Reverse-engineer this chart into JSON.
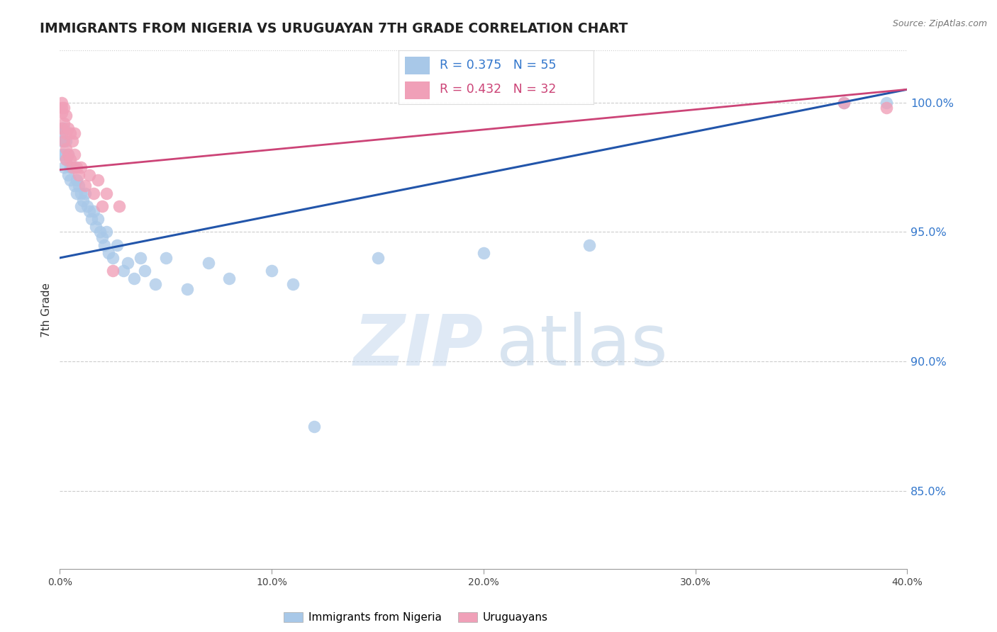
{
  "title": "IMMIGRANTS FROM NIGERIA VS URUGUAYAN 7TH GRADE CORRELATION CHART",
  "source": "Source: ZipAtlas.com",
  "ylabel": "7th Grade",
  "ytick_labels": [
    "100.0%",
    "95.0%",
    "90.0%",
    "85.0%"
  ],
  "ytick_values": [
    1.0,
    0.95,
    0.9,
    0.85
  ],
  "xlim": [
    0.0,
    0.4
  ],
  "ylim": [
    0.82,
    1.02
  ],
  "xtick_positions": [
    0.0,
    0.1,
    0.2,
    0.3,
    0.4
  ],
  "xtick_labels": [
    "0.0%",
    "10.0%",
    "20.0%",
    "30.0%",
    "40.0%"
  ],
  "legend1_label": "Immigrants from Nigeria",
  "legend2_label": "Uruguayans",
  "blue_color": "#a8c8e8",
  "pink_color": "#f0a0b8",
  "blue_line_color": "#2255aa",
  "pink_line_color": "#cc4477",
  "r_blue": 0.375,
  "n_blue": 55,
  "r_pink": 0.432,
  "n_pink": 32,
  "blue_x": [
    0.001,
    0.001,
    0.001,
    0.001,
    0.002,
    0.002,
    0.002,
    0.002,
    0.003,
    0.003,
    0.004,
    0.004,
    0.005,
    0.005,
    0.006,
    0.007,
    0.007,
    0.008,
    0.008,
    0.009,
    0.01,
    0.01,
    0.011,
    0.012,
    0.013,
    0.014,
    0.015,
    0.016,
    0.017,
    0.018,
    0.019,
    0.02,
    0.021,
    0.022,
    0.023,
    0.025,
    0.027,
    0.03,
    0.032,
    0.035,
    0.038,
    0.04,
    0.045,
    0.05,
    0.06,
    0.07,
    0.08,
    0.1,
    0.11,
    0.12,
    0.15,
    0.2,
    0.25,
    0.37,
    0.39
  ],
  "blue_y": [
    0.99,
    0.988,
    0.985,
    0.98,
    0.99,
    0.985,
    0.98,
    0.975,
    0.985,
    0.978,
    0.98,
    0.972,
    0.975,
    0.97,
    0.975,
    0.975,
    0.968,
    0.97,
    0.965,
    0.968,
    0.965,
    0.96,
    0.962,
    0.965,
    0.96,
    0.958,
    0.955,
    0.958,
    0.952,
    0.955,
    0.95,
    0.948,
    0.945,
    0.95,
    0.942,
    0.94,
    0.945,
    0.935,
    0.938,
    0.932,
    0.94,
    0.935,
    0.93,
    0.94,
    0.928,
    0.938,
    0.932,
    0.935,
    0.93,
    0.875,
    0.94,
    0.942,
    0.945,
    1.0,
    1.0
  ],
  "pink_x": [
    0.001,
    0.001,
    0.001,
    0.001,
    0.002,
    0.002,
    0.002,
    0.003,
    0.003,
    0.003,
    0.003,
    0.004,
    0.004,
    0.005,
    0.005,
    0.006,
    0.006,
    0.007,
    0.007,
    0.008,
    0.009,
    0.01,
    0.012,
    0.014,
    0.016,
    0.018,
    0.02,
    0.022,
    0.025,
    0.028,
    0.37,
    0.39
  ],
  "pink_y": [
    1.0,
    0.998,
    0.996,
    0.99,
    0.998,
    0.992,
    0.985,
    0.995,
    0.988,
    0.982,
    0.978,
    0.99,
    0.98,
    0.988,
    0.978,
    0.985,
    0.975,
    0.988,
    0.98,
    0.975,
    0.972,
    0.975,
    0.968,
    0.972,
    0.965,
    0.97,
    0.96,
    0.965,
    0.935,
    0.96,
    1.0,
    0.998
  ],
  "blue_trendline_x0": 0.0,
  "blue_trendline_y0": 0.94,
  "blue_trendline_x1": 0.4,
  "blue_trendline_y1": 1.005,
  "pink_trendline_x0": 0.0,
  "pink_trendline_y0": 0.974,
  "pink_trendline_x1": 0.4,
  "pink_trendline_y1": 1.005,
  "watermark_zip_color": "#c5d8ee",
  "watermark_atlas_color": "#aac4de",
  "background_color": "#ffffff",
  "grid_color": "#cccccc"
}
